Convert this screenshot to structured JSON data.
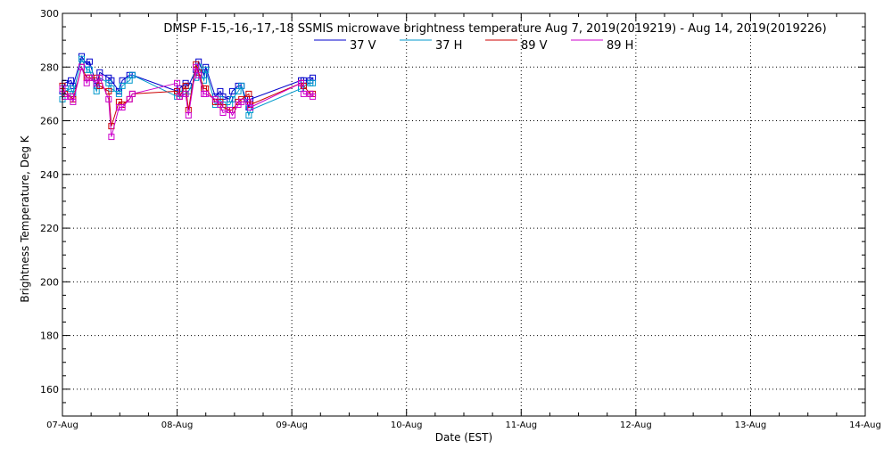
{
  "chart_data": {
    "type": "line",
    "title": "DMSP F-15,-16,-17,-18 SSMIS microwave brightness temperature Aug  7, 2019(2019219) - Aug 14, 2019(2019226)",
    "xlabel": "Date (EST)",
    "ylabel": "Brightness Temperature, Deg K",
    "xlim": [
      "2019-08-07T00:00",
      "2019-08-14T00:00"
    ],
    "ylim": [
      150,
      300
    ],
    "x_tick_labels": [
      "07-Aug",
      "08-Aug",
      "09-Aug",
      "10-Aug",
      "11-Aug",
      "12-Aug",
      "13-Aug",
      "14-Aug"
    ],
    "y_ticks": [
      160,
      180,
      200,
      220,
      240,
      260,
      280,
      300
    ],
    "grid": true,
    "legend_position": "top",
    "series": [
      {
        "name": "37 V",
        "color": "#0000cc",
        "points": [
          [
            "2019-08-07T00:00",
            271
          ],
          [
            "2019-08-07T00:30",
            274
          ],
          [
            "2019-08-07T01:48",
            275
          ],
          [
            "2019-08-07T02:13",
            273
          ],
          [
            "2019-08-07T04:01",
            284
          ],
          [
            "2019-08-07T05:05",
            281
          ],
          [
            "2019-08-07T05:41",
            282
          ],
          [
            "2019-08-07T07:08",
            273
          ],
          [
            "2019-08-07T07:48",
            278
          ],
          [
            "2019-08-07T09:40",
            276
          ],
          [
            "2019-08-07T10:15",
            275
          ],
          [
            "2019-08-07T11:50",
            271
          ],
          [
            "2019-08-07T12:32",
            275
          ],
          [
            "2019-08-07T14:02",
            277
          ],
          [
            "2019-08-07T14:38",
            277
          ],
          [
            "2019-08-08T00:00",
            271
          ],
          [
            "2019-08-08T00:30",
            272
          ],
          [
            "2019-08-08T01:47",
            274
          ],
          [
            "2019-08-08T02:22",
            273
          ],
          [
            "2019-08-08T03:57",
            279
          ],
          [
            "2019-08-08T04:30",
            282
          ],
          [
            "2019-08-08T05:36",
            277
          ],
          [
            "2019-08-08T06:00",
            280
          ],
          [
            "2019-08-08T08:00",
            269
          ],
          [
            "2019-08-08T09:01",
            271
          ],
          [
            "2019-08-08T09:36",
            269
          ],
          [
            "2019-08-08T11:02",
            268
          ],
          [
            "2019-08-08T11:32",
            271
          ],
          [
            "2019-08-08T12:48",
            273
          ],
          [
            "2019-08-08T13:28",
            273
          ],
          [
            "2019-08-08T15:00",
            265
          ],
          [
            "2019-08-08T15:19",
            268
          ],
          [
            "2019-08-09T01:56",
            275
          ],
          [
            "2019-08-09T02:29",
            275
          ],
          [
            "2019-08-09T03:51",
            275
          ],
          [
            "2019-08-09T04:23",
            276
          ]
        ]
      },
      {
        "name": "37 H",
        "color": "#0099cc",
        "points": [
          [
            "2019-08-07T00:00",
            268
          ],
          [
            "2019-08-07T00:30",
            271
          ],
          [
            "2019-08-07T01:48",
            272
          ],
          [
            "2019-08-07T02:13",
            270
          ],
          [
            "2019-08-07T04:01",
            283
          ],
          [
            "2019-08-07T05:05",
            279
          ],
          [
            "2019-08-07T05:41",
            279
          ],
          [
            "2019-08-07T07:08",
            271
          ],
          [
            "2019-08-07T07:48",
            276
          ],
          [
            "2019-08-07T09:40",
            274
          ],
          [
            "2019-08-07T10:15",
            272
          ],
          [
            "2019-08-07T11:50",
            270
          ],
          [
            "2019-08-07T12:32",
            273
          ],
          [
            "2019-08-07T14:02",
            275
          ],
          [
            "2019-08-07T14:38",
            277
          ],
          [
            "2019-08-08T00:00",
            269
          ],
          [
            "2019-08-08T00:30",
            270
          ],
          [
            "2019-08-08T01:47",
            270
          ],
          [
            "2019-08-08T02:22",
            271
          ],
          [
            "2019-08-08T03:57",
            276
          ],
          [
            "2019-08-08T04:30",
            280
          ],
          [
            "2019-08-08T05:36",
            275
          ],
          [
            "2019-08-08T06:00",
            279
          ],
          [
            "2019-08-08T08:00",
            266
          ],
          [
            "2019-08-08T09:01",
            268
          ],
          [
            "2019-08-08T09:36",
            266
          ],
          [
            "2019-08-08T11:02",
            266
          ],
          [
            "2019-08-08T11:32",
            268
          ],
          [
            "2019-08-08T12:48",
            271
          ],
          [
            "2019-08-08T13:28",
            273
          ],
          [
            "2019-08-08T15:00",
            262
          ],
          [
            "2019-08-08T15:19",
            264
          ],
          [
            "2019-08-09T01:56",
            272
          ],
          [
            "2019-08-09T02:29",
            273
          ],
          [
            "2019-08-09T03:51",
            274
          ],
          [
            "2019-08-09T04:23",
            274
          ]
        ]
      },
      {
        "name": "89 V",
        "color": "#cc0000",
        "points": [
          [
            "2019-08-07T00:00",
            273
          ],
          [
            "2019-08-07T00:30",
            270
          ],
          [
            "2019-08-07T01:48",
            269
          ],
          [
            "2019-08-07T02:13",
            268
          ],
          [
            "2019-08-07T04:01",
            280
          ],
          [
            "2019-08-07T05:05",
            276
          ],
          [
            "2019-08-07T05:41",
            276
          ],
          [
            "2019-08-07T07:08",
            276
          ],
          [
            "2019-08-07T07:48",
            273
          ],
          [
            "2019-08-07T09:40",
            271
          ],
          [
            "2019-08-07T10:15",
            258
          ],
          [
            "2019-08-07T11:50",
            267
          ],
          [
            "2019-08-07T12:32",
            266
          ],
          [
            "2019-08-07T14:02",
            268
          ],
          [
            "2019-08-07T14:38",
            270
          ],
          [
            "2019-08-08T00:00",
            271
          ],
          [
            "2019-08-08T00:30",
            269
          ],
          [
            "2019-08-08T01:47",
            273
          ],
          [
            "2019-08-08T02:22",
            264
          ],
          [
            "2019-08-08T03:57",
            281
          ],
          [
            "2019-08-08T04:30",
            278
          ],
          [
            "2019-08-08T05:36",
            272
          ],
          [
            "2019-08-08T06:00",
            272
          ],
          [
            "2019-08-08T08:00",
            267
          ],
          [
            "2019-08-08T09:01",
            267
          ],
          [
            "2019-08-08T09:36",
            265
          ],
          [
            "2019-08-08T11:02",
            264
          ],
          [
            "2019-08-08T11:32",
            264
          ],
          [
            "2019-08-08T12:48",
            267
          ],
          [
            "2019-08-08T13:28",
            268
          ],
          [
            "2019-08-08T15:00",
            270
          ],
          [
            "2019-08-08T15:19",
            266
          ],
          [
            "2019-08-09T01:56",
            274
          ],
          [
            "2019-08-09T02:29",
            273
          ],
          [
            "2019-08-09T03:51",
            270
          ],
          [
            "2019-08-09T04:23",
            270
          ]
        ]
      },
      {
        "name": "89 H",
        "color": "#cc00cc",
        "points": [
          [
            "2019-08-07T00:00",
            272
          ],
          [
            "2019-08-07T00:30",
            269
          ],
          [
            "2019-08-07T01:48",
            269
          ],
          [
            "2019-08-07T02:13",
            267
          ],
          [
            "2019-08-07T04:01",
            280
          ],
          [
            "2019-08-07T05:05",
            274
          ],
          [
            "2019-08-07T05:41",
            276
          ],
          [
            "2019-08-07T07:08",
            274
          ],
          [
            "2019-08-07T07:48",
            276
          ],
          [
            "2019-08-07T09:40",
            268
          ],
          [
            "2019-08-07T10:15",
            254
          ],
          [
            "2019-08-07T11:50",
            265
          ],
          [
            "2019-08-07T12:32",
            265
          ],
          [
            "2019-08-07T14:02",
            268
          ],
          [
            "2019-08-07T14:38",
            270
          ],
          [
            "2019-08-08T00:00",
            274
          ],
          [
            "2019-08-08T00:30",
            269
          ],
          [
            "2019-08-08T01:47",
            270
          ],
          [
            "2019-08-08T02:22",
            262
          ],
          [
            "2019-08-08T03:57",
            280
          ],
          [
            "2019-08-08T04:30",
            277
          ],
          [
            "2019-08-08T05:36",
            270
          ],
          [
            "2019-08-08T06:00",
            270
          ],
          [
            "2019-08-08T08:00",
            268
          ],
          [
            "2019-08-08T09:01",
            266
          ],
          [
            "2019-08-08T09:36",
            263
          ],
          [
            "2019-08-08T11:02",
            264
          ],
          [
            "2019-08-08T11:32",
            262
          ],
          [
            "2019-08-08T12:48",
            266
          ],
          [
            "2019-08-08T13:28",
            267
          ],
          [
            "2019-08-08T15:00",
            267
          ],
          [
            "2019-08-08T15:19",
            265
          ],
          [
            "2019-08-09T01:56",
            274
          ],
          [
            "2019-08-09T02:29",
            270
          ],
          [
            "2019-08-09T03:51",
            270
          ],
          [
            "2019-08-09T04:23",
            269
          ]
        ]
      }
    ]
  }
}
